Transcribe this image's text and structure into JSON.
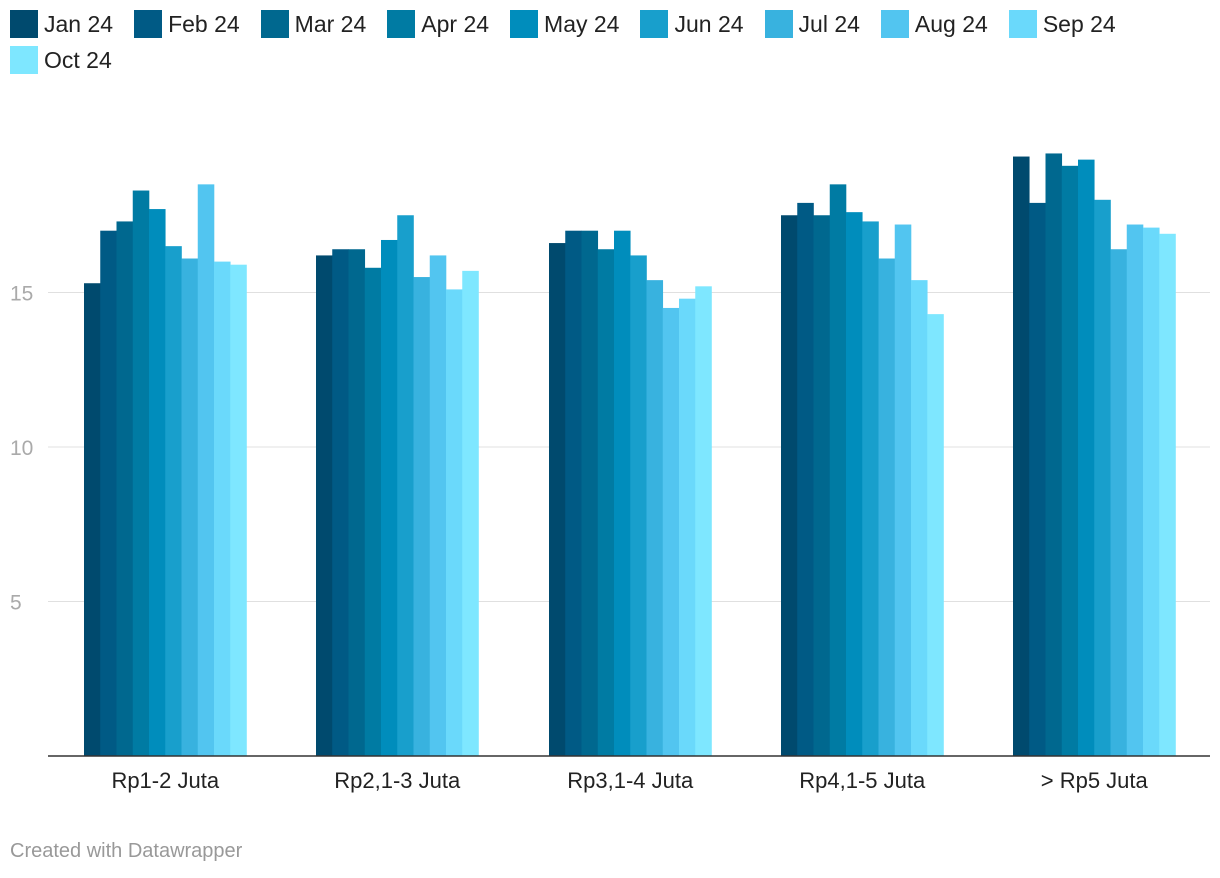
{
  "chart_data": {
    "type": "bar",
    "categories": [
      "Rp1-2 Juta",
      "Rp2,1-3 Juta",
      "Rp3,1-4 Juta",
      "Rp4,1-5 Juta",
      "> Rp5 Juta"
    ],
    "series": [
      {
        "name": "Jan 24",
        "color": "#004a6e",
        "values": [
          15.3,
          16.2,
          16.6,
          17.5,
          19.4
        ]
      },
      {
        "name": "Feb 24",
        "color": "#005a85",
        "values": [
          17.0,
          16.4,
          17.0,
          17.9,
          17.9
        ]
      },
      {
        "name": "Mar 24",
        "color": "#00688f",
        "values": [
          17.3,
          16.4,
          17.0,
          17.5,
          19.5
        ]
      },
      {
        "name": "Apr 24",
        "color": "#007ba3",
        "values": [
          18.3,
          15.8,
          16.4,
          18.5,
          19.1
        ]
      },
      {
        "name": "May 24",
        "color": "#008dbc",
        "values": [
          17.7,
          16.7,
          17.0,
          17.6,
          19.3
        ]
      },
      {
        "name": "Jun 24",
        "color": "#189fcc",
        "values": [
          16.5,
          17.5,
          16.2,
          17.3,
          18.0
        ]
      },
      {
        "name": "Jul 24",
        "color": "#38b2df",
        "values": [
          16.1,
          15.5,
          15.4,
          16.1,
          16.4
        ]
      },
      {
        "name": "Aug 24",
        "color": "#52c5f0",
        "values": [
          18.5,
          16.2,
          14.5,
          17.2,
          17.2
        ]
      },
      {
        "name": "Sep 24",
        "color": "#6ad9fb",
        "values": [
          16.0,
          15.1,
          14.8,
          15.4,
          17.1
        ]
      },
      {
        "name": "Oct 24",
        "color": "#7ee7ff",
        "values": [
          15.9,
          15.7,
          15.2,
          14.3,
          16.9
        ]
      }
    ],
    "y_ticks": [
      5,
      10,
      15
    ],
    "ylim": [
      0,
      21
    ],
    "grid": true,
    "legend": "top-left"
  },
  "footer": {
    "credit": "Created with Datawrapper"
  }
}
